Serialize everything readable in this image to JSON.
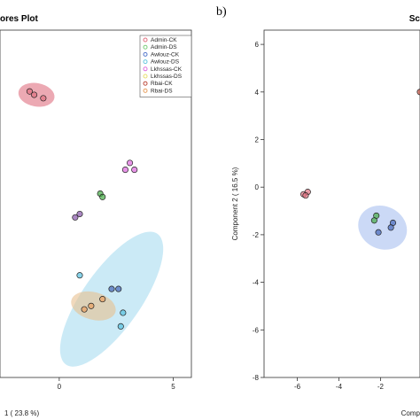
{
  "panel_b_letter": "b)",
  "chart_data": [
    {
      "type": "scatter",
      "title": "ores Plot",
      "xlabel": "1 ( 23.8 %)",
      "ylabel": "",
      "x_ticks": [
        "0",
        "5"
      ],
      "xlim": [
        -2.6,
        5.8
      ],
      "ylim": [
        -6.6,
        3.6
      ],
      "legend_position": "top-right",
      "legend": [
        {
          "name": "Admin-CK",
          "color": "#e07080"
        },
        {
          "name": "Admin-DS",
          "color": "#7ccf7c"
        },
        {
          "name": "Awlouz-CK",
          "color": "#5577cc"
        },
        {
          "name": "Awlouz-DS",
          "color": "#66c8e0"
        },
        {
          "name": "Lkhssas-CK",
          "color": "#e070e0"
        },
        {
          "name": "Lkhssas-DS",
          "color": "#e8e070"
        },
        {
          "name": "Rbai-CK",
          "color": "#c05040"
        },
        {
          "name": "Rbai-DS",
          "color": "#e8a060"
        }
      ],
      "series": [
        {
          "name": "Admin-CK",
          "color": "#e07080",
          "points": [
            [
              -1.3,
              1.8
            ],
            [
              -1.1,
              1.7
            ],
            [
              -0.7,
              1.6
            ]
          ]
        },
        {
          "name": "Admin-DS",
          "color": "#44aa44",
          "points": [
            [
              1.8,
              -1.2
            ],
            [
              1.9,
              -1.3
            ]
          ]
        },
        {
          "name": "Lkhssas-CK",
          "color": "#dd66dd",
          "points": [
            [
              3.1,
              -0.3
            ],
            [
              2.9,
              -0.5
            ],
            [
              3.3,
              -0.5
            ]
          ]
        },
        {
          "name": "Rbai-CK",
          "color": "#8855aa",
          "points": [
            [
              0.7,
              -1.9
            ],
            [
              0.9,
              -1.8
            ]
          ]
        },
        {
          "name": "Awlouz-DS",
          "color": "#55c0e0",
          "points": [
            [
              0.9,
              -3.6
            ],
            [
              2.8,
              -4.7
            ],
            [
              2.7,
              -5.1
            ]
          ]
        },
        {
          "name": "Awlouz-CK",
          "color": "#4466bb",
          "points": [
            [
              2.3,
              -4.0
            ],
            [
              2.6,
              -4.0
            ]
          ]
        },
        {
          "name": "Rbai-DS",
          "color": "#e8a060",
          "points": [
            [
              1.1,
              -4.6
            ],
            [
              1.4,
              -4.5
            ],
            [
              1.9,
              -4.3
            ]
          ]
        }
      ],
      "ellipses": [
        {
          "color": "#a8dcf0",
          "cx": 2.3,
          "cy": -4.3,
          "rx": 3.5,
          "ry": 0.25,
          "angle": 55
        },
        {
          "color": "#e07080",
          "cx": -1.0,
          "cy": 1.7,
          "rx": 0.8,
          "ry": 0.08,
          "angle": -10
        },
        {
          "color": "#e8c090",
          "cx": 1.5,
          "cy": -4.5,
          "rx": 1.0,
          "ry": 0.1,
          "angle": -15
        }
      ]
    },
    {
      "type": "scatter",
      "title": "Sc",
      "xlabel": "Comp",
      "ylabel": "Component 2 ( 16.5 %)",
      "x_ticks": [
        "-6",
        "-4",
        "-2"
      ],
      "y_ticks": [
        "6",
        "4",
        "2",
        "0",
        "-2",
        "-4",
        "-6",
        "-8"
      ],
      "xlim": [
        -7.6,
        -0.1
      ],
      "ylim": [
        -8,
        6.6
      ],
      "series": [
        {
          "name": "Admin-CK",
          "color": "#e07080",
          "points": [
            [
              -5.7,
              -0.3
            ],
            [
              -5.5,
              -0.2
            ],
            [
              -5.6,
              -0.35
            ]
          ]
        },
        {
          "name": "Admin-DS",
          "color": "#44aa44",
          "points": [
            [
              -2.2,
              -1.2
            ],
            [
              -2.3,
              -1.4
            ]
          ]
        },
        {
          "name": "Awlouz-CK",
          "color": "#4466bb",
          "points": [
            [
              -2.1,
              -1.9
            ],
            [
              -1.4,
              -1.5
            ],
            [
              -1.5,
              -1.7
            ]
          ]
        },
        {
          "name": "Admin-CK edge",
          "color": "#c05040",
          "points": [
            [
              -0.1,
              4.0
            ]
          ]
        }
      ],
      "ellipses": [
        {
          "color": "#a8c0f0",
          "cx": -1.9,
          "cy": -1.7,
          "rx": 1.2,
          "ry": 0.25,
          "angle": -25
        }
      ]
    }
  ]
}
